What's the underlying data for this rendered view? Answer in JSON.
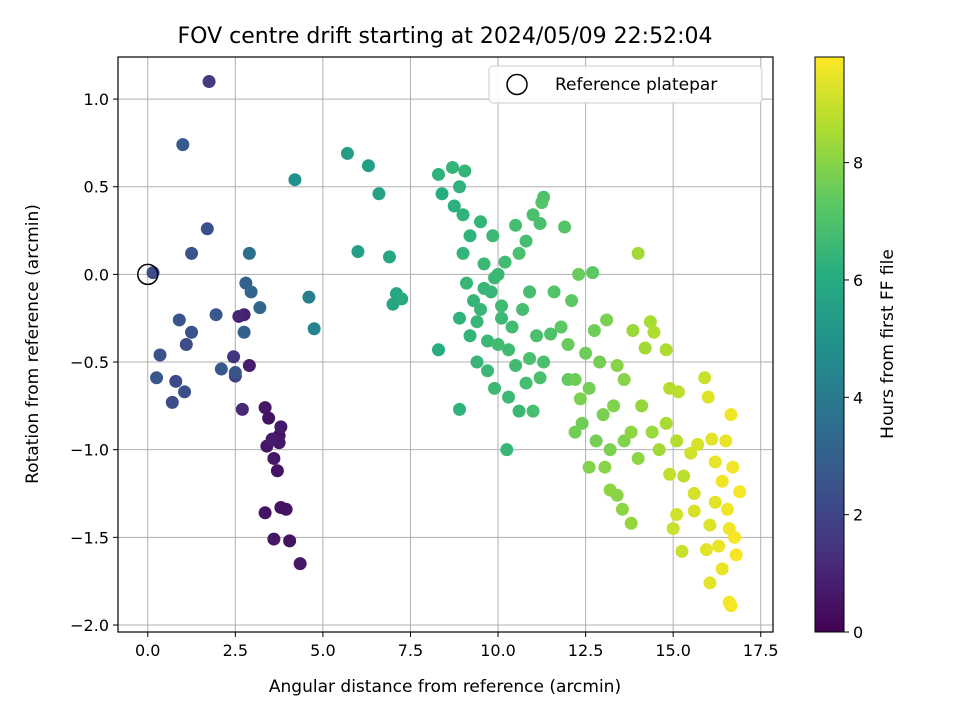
{
  "chart_data": {
    "type": "scatter",
    "title": "FOV centre drift starting at 2024/05/09 22:52:04",
    "xlabel": "Angular distance from reference (arcmin)",
    "ylabel": "Rotation from reference (arcmin)",
    "xlim": [
      -0.85,
      17.85
    ],
    "ylim": [
      -2.04,
      1.24
    ],
    "xticks": [
      0.0,
      2.5,
      5.0,
      7.5,
      10.0,
      12.5,
      15.0,
      17.5
    ],
    "xtick_labels": [
      "0.0",
      "2.5",
      "5.0",
      "7.5",
      "10.0",
      "12.5",
      "15.0",
      "17.5"
    ],
    "yticks": [
      -2.0,
      -1.5,
      -1.0,
      -0.5,
      0.0,
      0.5,
      1.0
    ],
    "ytick_labels": [
      "−2.0",
      "−1.5",
      "−1.0",
      "−0.5",
      "0.0",
      "0.5",
      "1.0"
    ],
    "grid": true,
    "legend": {
      "position": "top-right",
      "entries": [
        {
          "label": "Reference platepar",
          "marker": "open-circle",
          "x": 0.0,
          "y": 0.0
        }
      ]
    },
    "colorbar": {
      "label": "Hours from first FF file",
      "range": [
        0,
        9.8
      ],
      "ticks": [
        0,
        2,
        4,
        6,
        8
      ],
      "tick_labels": [
        "0",
        "2",
        "4",
        "6",
        "8"
      ],
      "colormap": "viridis"
    },
    "points": [
      [
        0.15,
        0.01,
        2.3
      ],
      [
        0.35,
        -0.46,
        2.5
      ],
      [
        0.25,
        -0.59,
        2.6
      ],
      [
        0.7,
        -0.73,
        2.3
      ],
      [
        0.8,
        -0.61,
        2.2
      ],
      [
        0.9,
        -0.26,
        2.5
      ],
      [
        1.05,
        -0.67,
        2.4
      ],
      [
        1.1,
        -0.4,
        2.3
      ],
      [
        1.25,
        -0.33,
        2.5
      ],
      [
        1.25,
        0.12,
        2.6
      ],
      [
        1.0,
        0.74,
        2.7
      ],
      [
        1.75,
        1.1,
        1.7
      ],
      [
        1.7,
        0.26,
        2.4
      ],
      [
        1.95,
        -0.23,
        2.7
      ],
      [
        2.1,
        -0.54,
        2.7
      ],
      [
        2.5,
        -0.56,
        2.6
      ],
      [
        2.45,
        -0.47,
        1.5
      ],
      [
        2.5,
        -0.58,
        1.9
      ],
      [
        2.6,
        -0.24,
        1.0
      ],
      [
        2.7,
        -0.77,
        1.1
      ],
      [
        2.75,
        -0.23,
        0.9
      ],
      [
        2.8,
        -0.05,
        3.0
      ],
      [
        2.75,
        -0.33,
        3.1
      ],
      [
        2.9,
        0.12,
        3.6
      ],
      [
        2.95,
        -0.1,
        3.2
      ],
      [
        2.9,
        -0.52,
        0.8
      ],
      [
        3.2,
        -0.19,
        3.2
      ],
      [
        3.35,
        -0.76,
        0.6
      ],
      [
        3.45,
        -0.82,
        0.5
      ],
      [
        3.4,
        -0.98,
        0.6
      ],
      [
        3.55,
        -0.94,
        0.7
      ],
      [
        3.6,
        -1.05,
        0.6
      ],
      [
        3.75,
        -0.96,
        0.6
      ],
      [
        3.8,
        -0.87,
        0.7
      ],
      [
        3.75,
        -0.92,
        0.5
      ],
      [
        3.7,
        -1.12,
        0.5
      ],
      [
        3.35,
        -1.36,
        0.5
      ],
      [
        3.6,
        -1.51,
        0.6
      ],
      [
        3.8,
        -1.33,
        0.5
      ],
      [
        3.95,
        -1.34,
        0.5
      ],
      [
        4.05,
        -1.52,
        0.5
      ],
      [
        4.35,
        -1.65,
        0.6
      ],
      [
        4.2,
        0.54,
        4.9
      ],
      [
        4.6,
        -0.13,
        4.2
      ],
      [
        4.75,
        -0.31,
        4.4
      ],
      [
        5.7,
        0.69,
        5.4
      ],
      [
        6.3,
        0.62,
        5.5
      ],
      [
        6.6,
        0.46,
        5.6
      ],
      [
        6.0,
        0.13,
        5.5
      ],
      [
        6.9,
        0.1,
        5.8
      ],
      [
        7.0,
        -0.17,
        5.7
      ],
      [
        7.1,
        -0.11,
        5.8
      ],
      [
        7.25,
        -0.14,
        5.9
      ],
      [
        8.3,
        -0.43,
        6.0
      ],
      [
        8.3,
        0.57,
        6.3
      ],
      [
        8.4,
        0.46,
        6.1
      ],
      [
        8.7,
        0.61,
        6.4
      ],
      [
        8.9,
        0.5,
        6.3
      ],
      [
        9.05,
        0.59,
        6.4
      ],
      [
        8.75,
        0.39,
        6.2
      ],
      [
        9.0,
        0.34,
        6.3
      ],
      [
        9.2,
        0.22,
        6.3
      ],
      [
        9.5,
        0.3,
        6.4
      ],
      [
        8.9,
        -0.77,
        6.3
      ],
      [
        9.4,
        -0.27,
        6.5
      ],
      [
        9.6,
        0.06,
        6.6
      ],
      [
        9.7,
        -0.38,
        6.6
      ],
      [
        9.85,
        0.22,
        6.6
      ],
      [
        9.9,
        -0.02,
        6.6
      ],
      [
        10.1,
        -0.18,
        6.7
      ],
      [
        10.3,
        -0.43,
        6.7
      ],
      [
        10.25,
        -1.0,
        6.5
      ],
      [
        10.5,
        0.28,
        6.8
      ],
      [
        10.6,
        0.12,
        6.9
      ],
      [
        10.8,
        0.19,
        6.8
      ],
      [
        11.0,
        0.34,
        6.9
      ],
      [
        11.2,
        0.29,
        6.9
      ],
      [
        11.3,
        0.44,
        7.0
      ],
      [
        11.25,
        0.41,
        7.1
      ],
      [
        10.9,
        -0.48,
        6.9
      ],
      [
        11.0,
        -0.78,
        6.8
      ],
      [
        10.6,
        -0.78,
        6.6
      ],
      [
        11.2,
        -0.59,
        6.9
      ],
      [
        11.5,
        -0.34,
        7.0
      ],
      [
        11.6,
        -0.1,
        7.1
      ],
      [
        11.9,
        0.27,
        7.1
      ],
      [
        12.3,
        0.0,
        7.5
      ],
      [
        12.5,
        -0.45,
        7.6
      ],
      [
        12.7,
        0.01,
        7.3
      ],
      [
        12.75,
        -0.32,
        7.6
      ],
      [
        12.2,
        -0.9,
        7.7
      ],
      [
        12.35,
        -0.71,
        7.8
      ],
      [
        12.6,
        -1.1,
        7.9
      ],
      [
        13.1,
        -0.26,
        7.8
      ],
      [
        13.4,
        -0.52,
        8.0
      ],
      [
        13.4,
        -1.26,
        8.0
      ],
      [
        13.55,
        -1.34,
        8.1
      ],
      [
        13.8,
        -1.42,
        8.2
      ],
      [
        13.2,
        -1.23,
        8.1
      ],
      [
        13.05,
        -1.1,
        8.0
      ],
      [
        14.0,
        0.12,
        8.4
      ],
      [
        13.85,
        -0.32,
        8.3
      ],
      [
        14.2,
        -0.42,
        8.4
      ],
      [
        14.35,
        -0.27,
        8.5
      ],
      [
        14.45,
        -0.33,
        8.6
      ],
      [
        14.8,
        -0.43,
        8.6
      ],
      [
        14.9,
        -0.65,
        8.7
      ],
      [
        15.15,
        -0.67,
        8.8
      ],
      [
        14.9,
        -1.14,
        8.9
      ],
      [
        15.0,
        -1.45,
        9.0
      ],
      [
        15.25,
        -1.58,
        9.0
      ],
      [
        15.1,
        -1.37,
        9.1
      ],
      [
        15.6,
        -1.25,
        9.2
      ],
      [
        15.9,
        -0.59,
        9.0
      ],
      [
        16.0,
        -0.7,
        9.3
      ],
      [
        16.05,
        -1.43,
        9.3
      ],
      [
        15.95,
        -1.57,
        9.4
      ],
      [
        16.05,
        -1.76,
        9.4
      ],
      [
        16.4,
        -1.68,
        9.5
      ],
      [
        16.6,
        -1.87,
        9.7
      ],
      [
        16.65,
        -0.8,
        9.6
      ],
      [
        16.75,
        -1.5,
        9.7
      ],
      [
        16.9,
        -1.24,
        9.7
      ],
      [
        16.65,
        -1.89,
        9.7
      ],
      [
        16.2,
        -1.07,
        9.5
      ],
      [
        16.4,
        -1.18,
        9.6
      ],
      [
        16.55,
        -1.34,
        9.6
      ],
      [
        15.5,
        -1.02,
        9.1
      ],
      [
        16.1,
        -0.94,
        9.4
      ],
      [
        15.7,
        -0.97,
        9.2
      ],
      [
        9.0,
        0.12,
        6.4
      ],
      [
        9.1,
        -0.05,
        6.5
      ],
      [
        9.3,
        -0.15,
        6.4
      ],
      [
        9.5,
        -0.2,
        6.5
      ],
      [
        9.8,
        -0.1,
        6.5
      ],
      [
        10.0,
        0.0,
        6.6
      ],
      [
        10.2,
        0.07,
        6.7
      ],
      [
        9.4,
        -0.5,
        6.5
      ],
      [
        9.7,
        -0.55,
        6.6
      ],
      [
        10.0,
        -0.4,
        6.7
      ],
      [
        10.4,
        -0.3,
        6.7
      ],
      [
        10.7,
        -0.2,
        6.8
      ],
      [
        10.9,
        -0.1,
        6.8
      ],
      [
        11.1,
        -0.35,
        6.9
      ],
      [
        11.3,
        -0.5,
        6.9
      ],
      [
        9.2,
        -0.35,
        6.4
      ],
      [
        8.9,
        -0.25,
        6.3
      ],
      [
        9.6,
        -0.08,
        6.5
      ],
      [
        10.1,
        -0.25,
        6.6
      ],
      [
        10.5,
        -0.52,
        6.7
      ],
      [
        10.8,
        -0.62,
        6.8
      ],
      [
        9.9,
        -0.65,
        6.6
      ],
      [
        10.3,
        -0.7,
        6.6
      ],
      [
        12.0,
        -0.4,
        7.5
      ],
      [
        12.2,
        -0.6,
        7.6
      ],
      [
        12.6,
        -0.65,
        7.7
      ],
      [
        12.9,
        -0.5,
        7.7
      ],
      [
        13.0,
        -0.8,
        7.8
      ],
      [
        13.3,
        -0.75,
        7.9
      ],
      [
        13.6,
        -0.6,
        8.0
      ],
      [
        13.8,
        -0.9,
        8.1
      ],
      [
        14.1,
        -0.75,
        8.2
      ],
      [
        14.4,
        -0.9,
        8.3
      ],
      [
        14.6,
        -1.0,
        8.4
      ],
      [
        14.8,
        -0.85,
        8.5
      ],
      [
        15.1,
        -0.95,
        8.7
      ],
      [
        15.3,
        -1.15,
        8.8
      ],
      [
        12.4,
        -0.85,
        7.6
      ],
      [
        12.8,
        -0.95,
        7.7
      ],
      [
        13.2,
        -1.0,
        7.8
      ],
      [
        13.6,
        -0.95,
        7.9
      ],
      [
        14.0,
        -1.05,
        8.1
      ],
      [
        12.0,
        -0.6,
        7.4
      ],
      [
        11.8,
        -0.3,
        7.3
      ],
      [
        12.1,
        -0.15,
        7.3
      ],
      [
        15.6,
        -1.35,
        9.2
      ],
      [
        16.2,
        -1.3,
        9.4
      ],
      [
        16.5,
        -0.95,
        9.5
      ],
      [
        16.7,
        -1.1,
        9.6
      ],
      [
        16.3,
        -1.55,
        9.5
      ],
      [
        16.8,
        -1.6,
        9.7
      ],
      [
        16.6,
        -1.45,
        9.6
      ]
    ]
  }
}
